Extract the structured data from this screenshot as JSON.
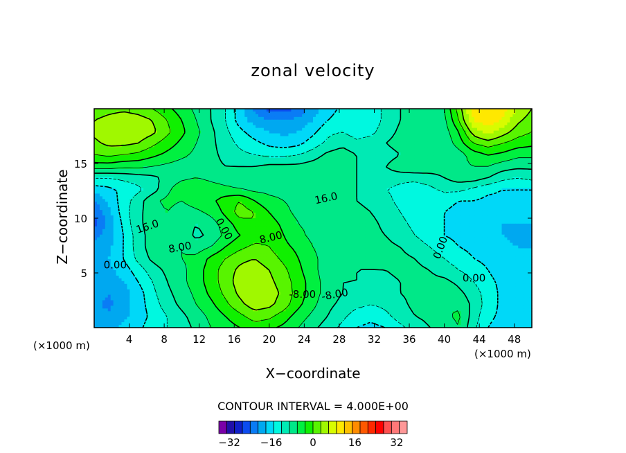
{
  "chart_data": {
    "type": "heatmap",
    "title": "zonal velocity",
    "xlabel": "X−coordinate",
    "ylabel": "Z−coordinate",
    "x_unit": "(×1000 m)",
    "xlim": [
      0,
      50
    ],
    "ylim": [
      0,
      20
    ],
    "x_ticks": [
      "4",
      "8",
      "12",
      "16",
      "20",
      "24",
      "28",
      "32",
      "36",
      "40",
      "44",
      "48"
    ],
    "y_ticks": [
      "5",
      "10",
      "15"
    ],
    "contour_labels": [
      "16.0",
      "16.0",
      "8.00",
      "8.00",
      "0.00",
      "0.00",
      "0.00",
      "0.00",
      "-8.00",
      "-8.00"
    ],
    "contour_interval_text": "CONTOUR INTERVAL = 4.000E+00",
    "contour_interval": 4.0,
    "colorbar": {
      "min": -36,
      "max": 36,
      "step": 4,
      "tick_labels": [
        "−32",
        "−16",
        "0",
        "16",
        "32"
      ],
      "colors": [
        "#7a00a8",
        "#2010a8",
        "#1020c8",
        "#0c4cf0",
        "#0a7cf5",
        "#00a8f0",
        "#00d8f8",
        "#00f8e0",
        "#00eab4",
        "#00e888",
        "#00f040",
        "#10f000",
        "#58f400",
        "#a0f800",
        "#d8fc00",
        "#ffe800",
        "#ffc000",
        "#ff8c00",
        "#ff5800",
        "#ff2800",
        "#ff0000",
        "#ff5050",
        "#ff7878",
        "#ff9898"
      ]
    },
    "grid": [
      [
        -14,
        -13,
        -11,
        -9,
        -6,
        -4,
        -2,
        1,
        4,
        6,
        8,
        10,
        9,
        7,
        4,
        1,
        -2,
        -5,
        -8,
        -9,
        -8,
        -5,
        -2,
        0,
        1,
        4,
        -3,
        -8,
        -10,
        -12,
        -12
      ],
      [
        -16,
        -15,
        -13,
        -10,
        -7,
        -4,
        -1,
        2,
        5,
        8,
        11,
        14,
        13,
        10,
        6,
        3,
        0,
        -3,
        -6,
        -7,
        -5,
        -2,
        0,
        1,
        3,
        5,
        -2,
        -7,
        -9,
        -11,
        -12
      ],
      [
        -15,
        -17,
        -14,
        -10,
        -6,
        -2,
        1,
        4,
        7,
        11,
        15,
        18,
        17,
        14,
        9,
        5,
        1,
        -1,
        -3,
        -4,
        -3,
        -1,
        1,
        2,
        4,
        3,
        -1,
        -6,
        -9,
        -11,
        -12
      ],
      [
        -14,
        -16,
        -14,
        -10,
        -5,
        -1,
        2,
        5,
        9,
        13,
        17,
        19,
        18,
        15,
        10,
        6,
        2,
        0,
        -1,
        -2,
        -2,
        0,
        1,
        2,
        3,
        1,
        -2,
        -6,
        -9,
        -11,
        -11
      ],
      [
        -14,
        -15,
        -12,
        -8,
        -4,
        0,
        3,
        6,
        10,
        14,
        18,
        19,
        17,
        14,
        10,
        6,
        2,
        0,
        0,
        -1,
        -1,
        0,
        1,
        1,
        1,
        -1,
        -4,
        -7,
        -9,
        -11,
        -11
      ],
      [
        -13,
        -13,
        -10,
        -6,
        -2,
        1,
        3,
        6,
        10,
        14,
        17,
        18,
        16,
        13,
        9,
        5,
        2,
        1,
        0,
        0,
        0,
        1,
        1,
        0,
        -2,
        -4,
        -6,
        -8,
        -10,
        -11,
        -11
      ],
      [
        -13,
        -12,
        -8,
        -3,
        1,
        3,
        4,
        5,
        9,
        12,
        15,
        16,
        14,
        11,
        8,
        5,
        2,
        1,
        0,
        0,
        1,
        1,
        0,
        -2,
        -4,
        -6,
        -8,
        -9,
        -10,
        -11,
        -11
      ],
      [
        -15,
        -13,
        -8,
        -2,
        2,
        4,
        4,
        2,
        4,
        8,
        11,
        13,
        12,
        9,
        7,
        4,
        2,
        1,
        0,
        1,
        1,
        0,
        -2,
        -4,
        -6,
        -8,
        -9,
        -10,
        -11,
        -12,
        -12
      ],
      [
        -17,
        -14,
        -8,
        -2,
        2,
        4,
        3,
        -1,
        1,
        5,
        8,
        10,
        11,
        8,
        5,
        3,
        2,
        1,
        1,
        1,
        0,
        -2,
        -4,
        -6,
        -8,
        -9,
        -10,
        -11,
        -12,
        -13,
        -13
      ],
      [
        -21,
        -15,
        -7,
        -1,
        2,
        3,
        2,
        0,
        2,
        6,
        10,
        12,
        10,
        7,
        4,
        3,
        2,
        1,
        1,
        1,
        -1,
        -3,
        -5,
        -7,
        -8,
        -9,
        -10,
        -11,
        -12,
        -12,
        -12
      ],
      [
        -20,
        -13,
        -6,
        -1,
        2,
        4,
        2,
        3,
        5,
        9,
        14,
        12,
        8,
        5,
        3,
        2,
        1,
        1,
        1,
        0,
        -2,
        -4,
        -6,
        -7,
        -8,
        -9,
        -10,
        -10,
        -11,
        -11,
        -11
      ],
      [
        -16,
        -11,
        -6,
        -2,
        3,
        5,
        4,
        6,
        7,
        10,
        12,
        8,
        5,
        4,
        3,
        2,
        1,
        1,
        0,
        -1,
        -3,
        -5,
        -6,
        -7,
        -7,
        -8,
        -8,
        -9,
        -9,
        -10,
        -10
      ],
      [
        -10,
        -9,
        -7,
        -5,
        -2,
        3,
        7,
        8,
        6,
        5,
        4,
        3,
        3,
        3,
        2,
        2,
        1,
        1,
        0,
        -2,
        -4,
        -5,
        -6,
        -5,
        -3,
        -3,
        -5,
        -7,
        -8,
        -8,
        -8
      ],
      [
        -4,
        -4,
        -3,
        -2,
        -1,
        1,
        3,
        4,
        3,
        2,
        2,
        2,
        2,
        1,
        1,
        1,
        1,
        1,
        0,
        -1,
        -2,
        -3,
        -3,
        -2,
        0,
        2,
        2,
        0,
        -3,
        -4,
        -3
      ],
      [
        6,
        6,
        5,
        5,
        4,
        3,
        2,
        2,
        1,
        0,
        0,
        0,
        1,
        1,
        1,
        2,
        3,
        2,
        0,
        -2,
        0,
        3,
        4,
        3,
        2,
        3,
        4,
        4,
        2,
        1,
        1
      ],
      [
        12,
        13,
        12,
        11,
        9,
        7,
        5,
        3,
        1,
        -1,
        -3,
        -4,
        -5,
        -5,
        -4,
        -2,
        1,
        2,
        0,
        -1,
        -2,
        0,
        3,
        2,
        1,
        2,
        6,
        8,
        7,
        5,
        5
      ],
      [
        15,
        17,
        17,
        16,
        13,
        10,
        7,
        4,
        1,
        -2,
        -5,
        -7,
        -9,
        -10,
        -9,
        -6,
        -3,
        -1,
        -3,
        -2,
        0,
        2,
        3,
        2,
        1,
        6,
        12,
        14,
        12,
        10,
        9
      ],
      [
        17,
        19,
        20,
        19,
        17,
        13,
        9,
        5,
        1,
        -3,
        -7,
        -10,
        -12,
        -13,
        -12,
        -9,
        -5,
        -4,
        -6,
        -5,
        -2,
        1,
        2,
        2,
        2,
        8,
        18,
        22,
        18,
        14,
        12
      ],
      [
        16,
        18,
        19,
        18,
        16,
        12,
        8,
        4,
        0,
        -4,
        -10,
        -14,
        -16,
        -16,
        -15,
        -12,
        -8,
        -6,
        -7,
        -6,
        -3,
        0,
        2,
        2,
        3,
        12,
        24,
        27,
        23,
        17,
        14
      ],
      [
        12,
        14,
        15,
        14,
        12,
        9,
        6,
        3,
        0,
        -4,
        -10,
        -17,
        -21,
        -22,
        -19,
        -14,
        -10,
        -7,
        -7,
        -6,
        -3,
        0,
        2,
        2,
        4,
        14,
        25,
        28,
        26,
        20,
        16
      ]
    ]
  }
}
